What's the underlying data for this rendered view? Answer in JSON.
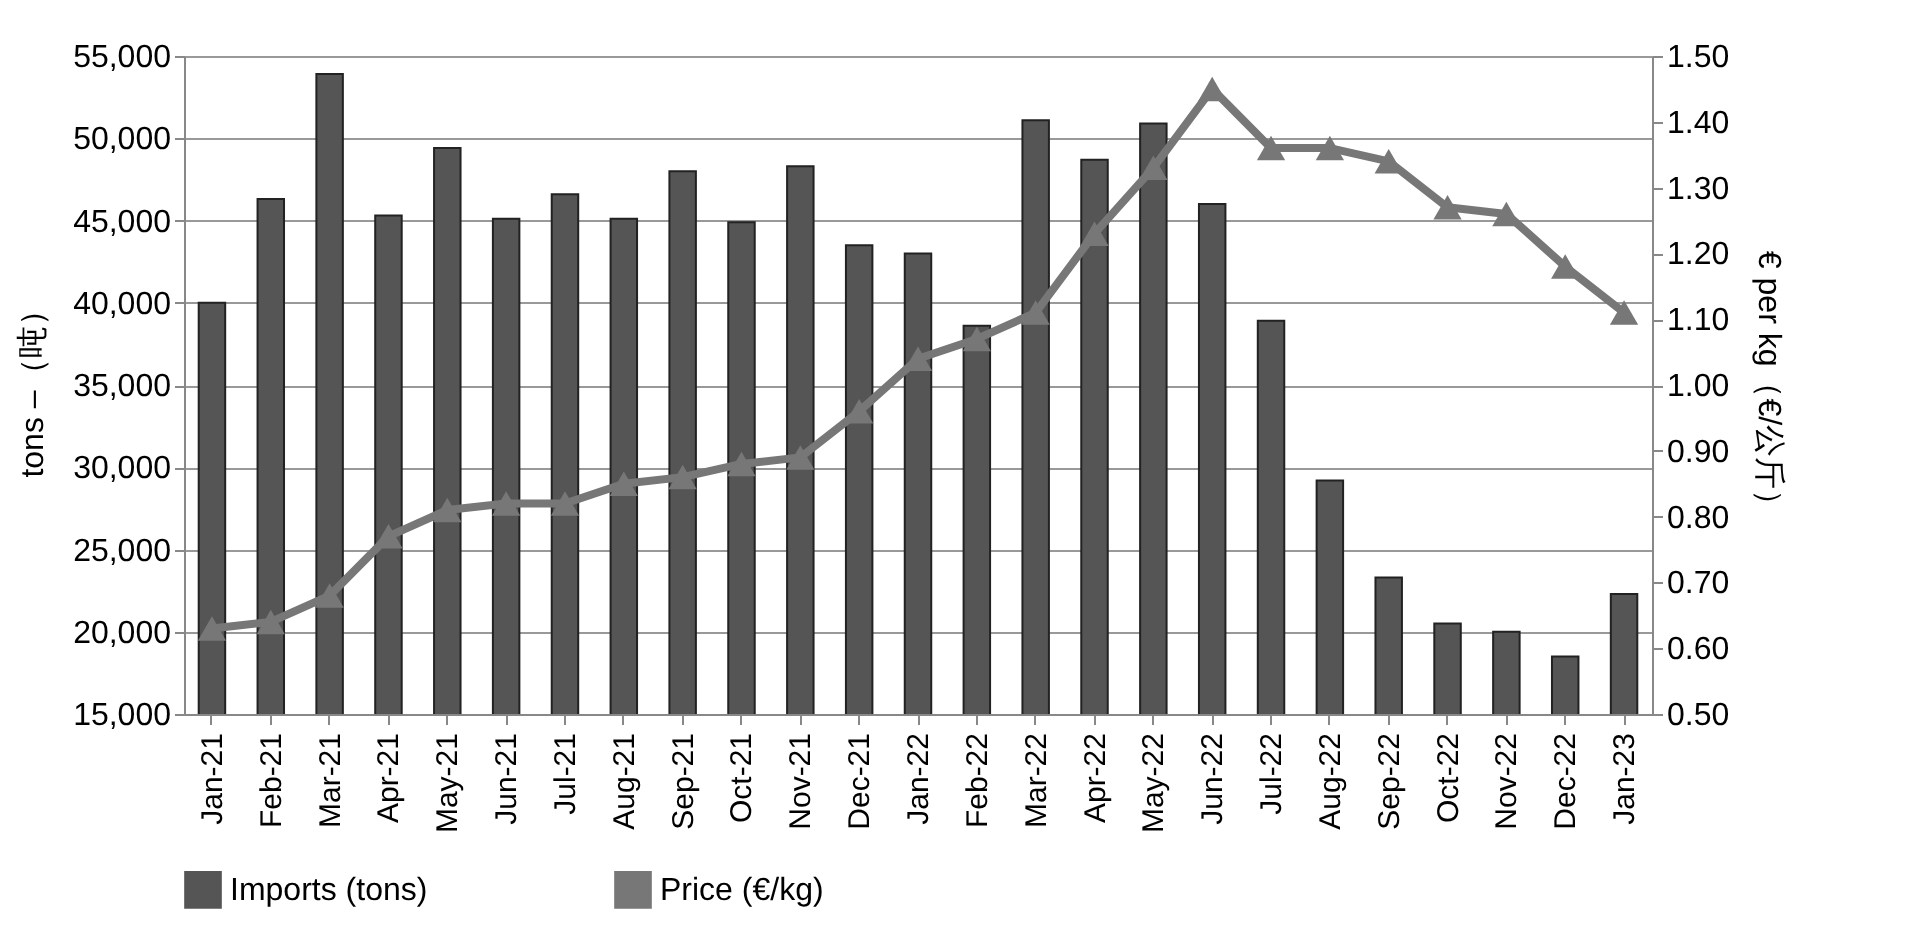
{
  "chart_data": {
    "type": "bar",
    "xlabel": null,
    "ylabel": "tons –（吨）",
    "y2label": "€ per kg（€/公斤）",
    "categories": [
      "Jan-21",
      "Feb-21",
      "Mar-21",
      "Apr-21",
      "May-21",
      "Jun-21",
      "Jul-21",
      "Aug-21",
      "Sep-21",
      "Oct-21",
      "Nov-21",
      "Dec-21",
      "Jan-22",
      "Feb-22",
      "Mar-22",
      "Apr-22",
      "May-22",
      "Jun-22",
      "Jul-22",
      "Aug-22",
      "Sep-22",
      "Oct-22",
      "Nov-22",
      "Dec-22",
      "Jan-23"
    ],
    "series": [
      {
        "name": "Imports (tons)",
        "color": "#555555",
        "values": [
          40000,
          46300,
          53900,
          45300,
          49400,
          45100,
          46600,
          45100,
          48000,
          44900,
          48300,
          43500,
          43000,
          38600,
          51100,
          48700,
          50900,
          46000,
          38900,
          29200,
          23300,
          20500,
          20000,
          18500,
          22300
        ]
      },
      {
        "name": "Price (€/kg)",
        "type": "line",
        "axis": "y2",
        "color": "#777777",
        "marker": "triangle",
        "values": [
          0.63,
          0.64,
          0.68,
          0.77,
          0.81,
          0.82,
          0.82,
          0.85,
          0.86,
          0.88,
          0.89,
          0.96,
          1.04,
          1.07,
          1.11,
          1.23,
          1.33,
          1.45,
          1.36,
          1.36,
          1.34,
          1.27,
          1.26,
          1.18,
          1.11
        ]
      }
    ],
    "ylim": [
      15000,
      55000
    ],
    "yticks": [
      {
        "value": 15000,
        "label": "15,000"
      },
      {
        "value": 20000,
        "label": "20,000"
      },
      {
        "value": 25000,
        "label": "25,000"
      },
      {
        "value": 30000,
        "label": "30,000"
      },
      {
        "value": 35000,
        "label": "35,000"
      },
      {
        "value": 40000,
        "label": "40,000"
      },
      {
        "value": 45000,
        "label": "45,000"
      },
      {
        "value": 50000,
        "label": "50,000"
      },
      {
        "value": 55000,
        "label": "55,000"
      }
    ],
    "y2lim": [
      0.5,
      1.5
    ],
    "y2ticks": [
      {
        "value": 0.5,
        "label": "0.50"
      },
      {
        "value": 0.6,
        "label": "0.60"
      },
      {
        "value": 0.7,
        "label": "0.70"
      },
      {
        "value": 0.8,
        "label": "0.80"
      },
      {
        "value": 0.9,
        "label": "0.90"
      },
      {
        "value": 1.0,
        "label": "1.00"
      },
      {
        "value": 1.1,
        "label": "1.10"
      },
      {
        "value": 1.2,
        "label": "1.20"
      },
      {
        "value": 1.3,
        "label": "1.30"
      },
      {
        "value": 1.4,
        "label": "1.40"
      },
      {
        "value": 1.5,
        "label": "1.50"
      }
    ],
    "grid": "y",
    "legend": "bottom"
  }
}
